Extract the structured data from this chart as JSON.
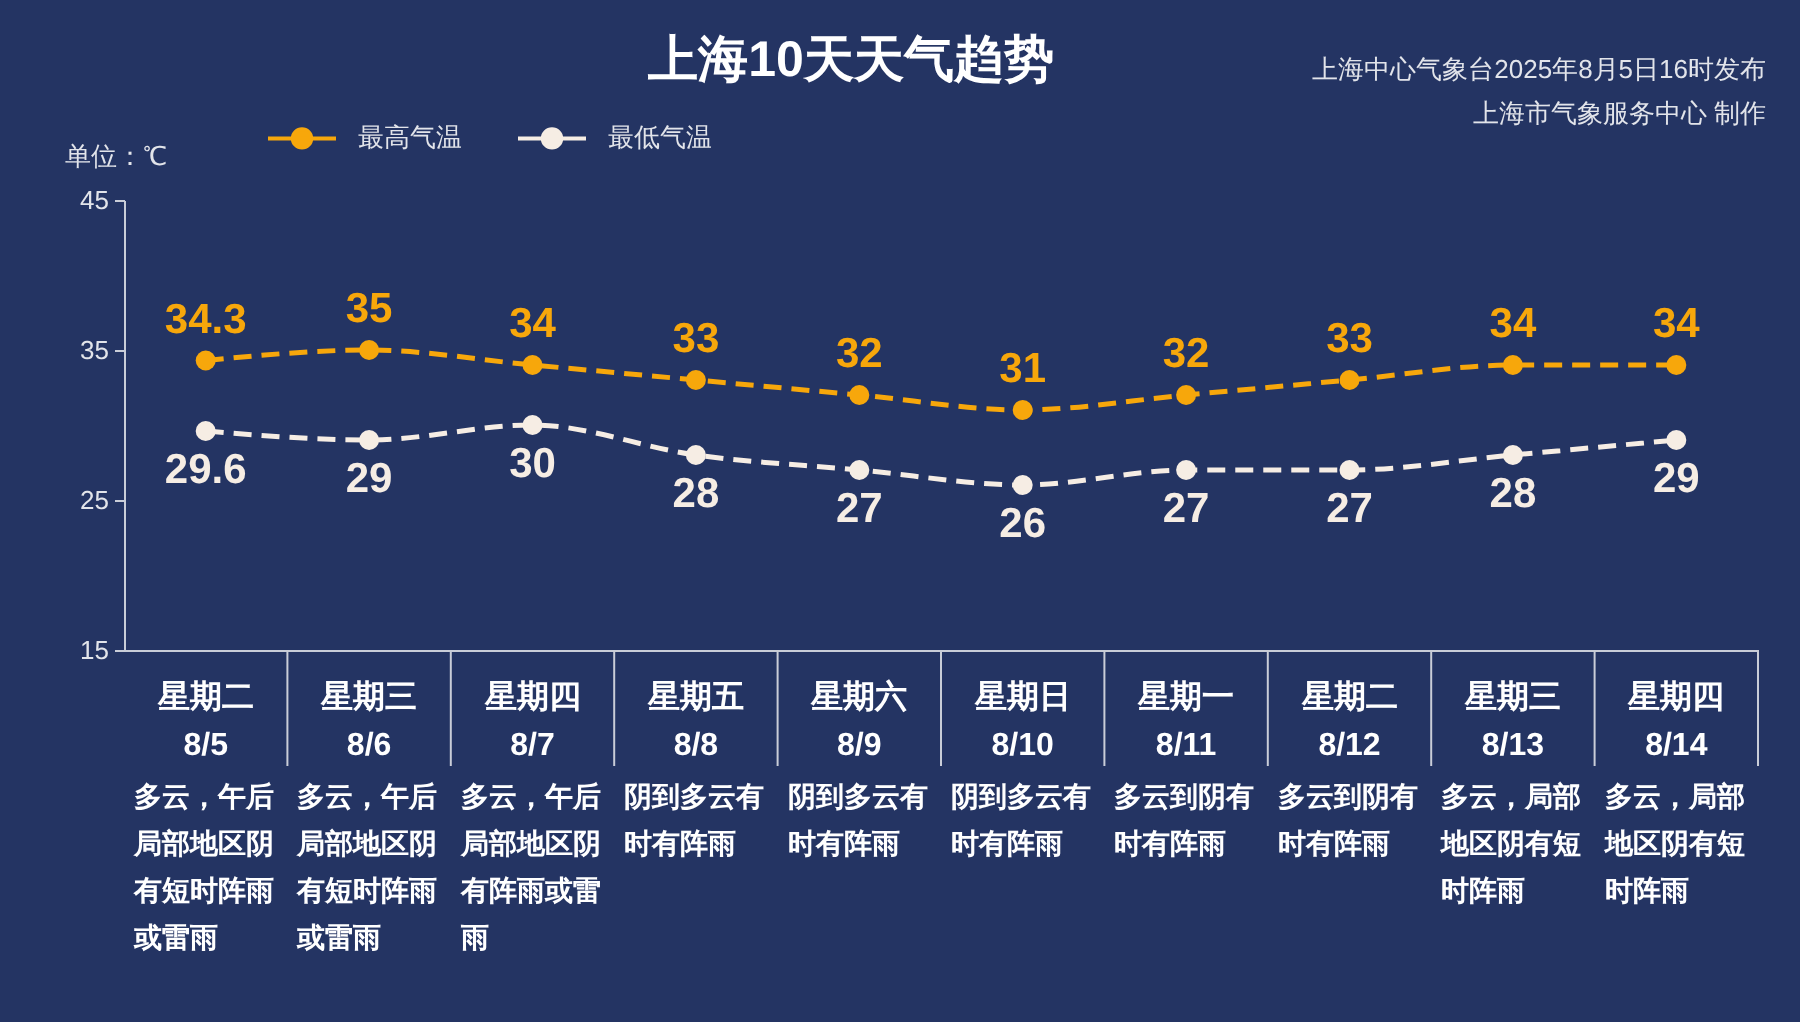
{
  "chart_data": {
    "type": "line",
    "title": "上海10天天气趋势",
    "ylabel": "单位：℃",
    "categories": [
      "星期二 8/5",
      "星期三 8/6",
      "星期四 8/7",
      "星期五 8/8",
      "星期六 8/9",
      "星期日 8/10",
      "星期一 8/11",
      "星期二 8/12",
      "星期三 8/13",
      "星期四 8/14"
    ],
    "series": [
      {
        "name": "最高气温",
        "color": "#f7a70b",
        "values": [
          34.3,
          35,
          34,
          33,
          32,
          31,
          32,
          33,
          34,
          34
        ]
      },
      {
        "name": "最低气温",
        "color": "#f6ede4",
        "values": [
          29.6,
          29,
          30,
          28,
          27,
          26,
          27,
          27,
          28,
          29
        ]
      }
    ],
    "ylim": [
      15,
      45
    ],
    "yticks": [
      15,
      25,
      35,
      45
    ],
    "data_labels": true,
    "legend": "top left",
    "marker": "circle",
    "line_style": "dashed",
    "annotations": [
      "上海中心气象台2025年8月5日16时发布",
      "上海市气象服务中心 制作",
      "多云，午后局部地区阴有短时阵雨或雷雨",
      "多云，午后局部地区阴有短时阵雨或雷雨",
      "多云，午后局部地区阴有阵雨或雷雨",
      "阴到多云有时有阵雨",
      "阴到多云有时有阵雨",
      "阴到多云有时有阵雨",
      "多云到阴有时有阵雨",
      "多云到阴有时有阵雨",
      "多云，局部地区阴有短时阵雨",
      "多云，局部地区阴有短时阵雨"
    ]
  }
}
